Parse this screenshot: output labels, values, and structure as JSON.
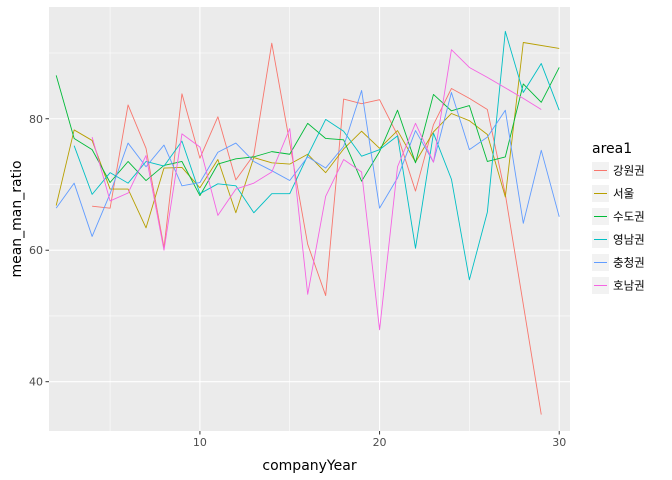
{
  "chart_data": {
    "type": "line",
    "xlabel": "companyYear",
    "ylabel": "mean_man_ratio",
    "xlim": [
      1.6,
      30.6
    ],
    "ylim": [
      32.5,
      97
    ],
    "x_ticks": [
      10,
      20,
      30
    ],
    "y_ticks": [
      40,
      60,
      80
    ],
    "grid": true,
    "legend_title": "area1",
    "legend_position": "right",
    "series": [
      {
        "name": "강원권",
        "color": "#F8766D",
        "points": [
          [
            4,
            66.7
          ],
          [
            5,
            66.4
          ],
          [
            6,
            82.1
          ],
          [
            7,
            75.5
          ],
          [
            8,
            60.4
          ],
          [
            9,
            83.8
          ],
          [
            10,
            74
          ],
          [
            11,
            80.3
          ],
          [
            12,
            70.7
          ],
          [
            13,
            74.5
          ],
          [
            14,
            91.5
          ],
          [
            15,
            76.3
          ],
          [
            16,
            60.9
          ],
          [
            17,
            53.1
          ],
          [
            18,
            83
          ],
          [
            19,
            82.3
          ],
          [
            20,
            82.9
          ],
          [
            21,
            77.5
          ],
          [
            22,
            69
          ],
          [
            23,
            79.1
          ],
          [
            24,
            84.6
          ],
          [
            25,
            83.1
          ],
          [
            26,
            81.4
          ],
          [
            27,
            68.5
          ],
          [
            29,
            35
          ]
        ]
      },
      {
        "name": "서울",
        "color": "#B79F00",
        "points": [
          [
            2,
            66.8
          ],
          [
            3,
            78.3
          ],
          [
            4,
            76.7
          ],
          [
            5,
            69.3
          ],
          [
            6,
            69.3
          ],
          [
            7,
            63.4
          ],
          [
            8,
            72.5
          ],
          [
            9,
            72.6
          ],
          [
            10,
            69.5
          ],
          [
            11,
            73.8
          ],
          [
            12,
            65.7
          ],
          [
            13,
            74.1
          ],
          [
            14,
            73.3
          ],
          [
            15,
            73.1
          ],
          [
            16,
            74.6
          ],
          [
            17,
            71.8
          ],
          [
            18,
            75.4
          ],
          [
            19,
            78.1
          ],
          [
            20,
            75.5
          ],
          [
            21,
            78.2
          ],
          [
            22,
            73.4
          ],
          [
            23,
            78
          ],
          [
            24,
            80.8
          ],
          [
            25,
            79.7
          ],
          [
            26,
            77.6
          ],
          [
            27,
            68.1
          ],
          [
            28,
            91.6
          ],
          [
            30,
            90.7
          ]
        ]
      },
      {
        "name": "수도권",
        "color": "#00BA38",
        "points": [
          [
            2,
            86.6
          ],
          [
            3,
            77
          ],
          [
            4,
            75.3
          ],
          [
            5,
            70.3
          ],
          [
            6,
            73.5
          ],
          [
            7,
            70.6
          ],
          [
            8,
            72.9
          ],
          [
            9,
            73.5
          ],
          [
            10,
            68.3
          ],
          [
            11,
            73.1
          ],
          [
            12,
            73.9
          ],
          [
            13,
            74.2
          ],
          [
            14,
            75
          ],
          [
            15,
            74.6
          ],
          [
            16,
            79.3
          ],
          [
            17,
            77
          ],
          [
            18,
            76.8
          ],
          [
            19,
            70.5
          ],
          [
            20,
            75
          ],
          [
            21,
            81.3
          ],
          [
            22,
            73.3
          ],
          [
            23,
            83.7
          ],
          [
            24,
            81.2
          ],
          [
            25,
            82
          ],
          [
            26,
            73.5
          ],
          [
            27,
            74.2
          ],
          [
            28,
            85.3
          ],
          [
            29,
            82.5
          ],
          [
            30,
            87.8
          ]
        ]
      },
      {
        "name": "영남권",
        "color": "#00BFC4",
        "points": [
          [
            3,
            75.9
          ],
          [
            4,
            68.5
          ],
          [
            5,
            71.8
          ],
          [
            6,
            70.2
          ],
          [
            7,
            73.5
          ],
          [
            8,
            72.8
          ],
          [
            9,
            76.6
          ],
          [
            10,
            68.6
          ],
          [
            11,
            70.1
          ],
          [
            12,
            69.8
          ],
          [
            13,
            65.7
          ],
          [
            14,
            68.6
          ],
          [
            15,
            68.6
          ],
          [
            16,
            74.4
          ],
          [
            17,
            79.9
          ],
          [
            18,
            78.1
          ],
          [
            19,
            74.3
          ],
          [
            20,
            75.3
          ],
          [
            21,
            77.4
          ],
          [
            22,
            60.3
          ],
          [
            23,
            77.8
          ],
          [
            24,
            70.8
          ],
          [
            25,
            55.5
          ],
          [
            26,
            65.8
          ],
          [
            27,
            93.3
          ],
          [
            28,
            84
          ],
          [
            29,
            88.4
          ],
          [
            30,
            81.3
          ]
        ]
      },
      {
        "name": "충청권",
        "color": "#619CFF",
        "points": [
          [
            2,
            66.4
          ],
          [
            3,
            70.2
          ],
          [
            4,
            62.1
          ],
          [
            5,
            68.6
          ],
          [
            6,
            76.3
          ],
          [
            7,
            72.7
          ],
          [
            8,
            76
          ],
          [
            9,
            69.8
          ],
          [
            10,
            70.3
          ],
          [
            11,
            74.9
          ],
          [
            12,
            76.3
          ],
          [
            13,
            73.5
          ],
          [
            14,
            72.1
          ],
          [
            15,
            70.6
          ],
          [
            16,
            74.2
          ],
          [
            17,
            72.5
          ],
          [
            18,
            75.8
          ],
          [
            19,
            84.3
          ],
          [
            20,
            66.4
          ],
          [
            21,
            71
          ],
          [
            22,
            78.2
          ],
          [
            23,
            73.4
          ],
          [
            24,
            84
          ],
          [
            25,
            75.3
          ],
          [
            26,
            77.2
          ],
          [
            27,
            81.3
          ],
          [
            28,
            64.1
          ],
          [
            29,
            75.2
          ],
          [
            30,
            65.1
          ]
        ]
      },
      {
        "name": "호남권",
        "color": "#F564E3",
        "points": [
          [
            4,
            77.2
          ],
          [
            5,
            67.5
          ],
          [
            6,
            68.7
          ],
          [
            7,
            74.4
          ],
          [
            8,
            60
          ],
          [
            9,
            77.7
          ],
          [
            10,
            75.7
          ],
          [
            11,
            65.3
          ],
          [
            12,
            69.3
          ],
          [
            13,
            70.2
          ],
          [
            14,
            71.9
          ],
          [
            15,
            78.5
          ],
          [
            16,
            53.3
          ],
          [
            17,
            68.2
          ],
          [
            18,
            73.8
          ],
          [
            19,
            71.9
          ],
          [
            20,
            47.9
          ],
          [
            21,
            72.7
          ],
          [
            22,
            79.3
          ],
          [
            23,
            73.4
          ],
          [
            24,
            90.5
          ],
          [
            25,
            87.8
          ],
          [
            26,
            86.3
          ],
          [
            27,
            84.7
          ],
          [
            28,
            83.1
          ],
          [
            29,
            81.4
          ]
        ]
      }
    ]
  }
}
